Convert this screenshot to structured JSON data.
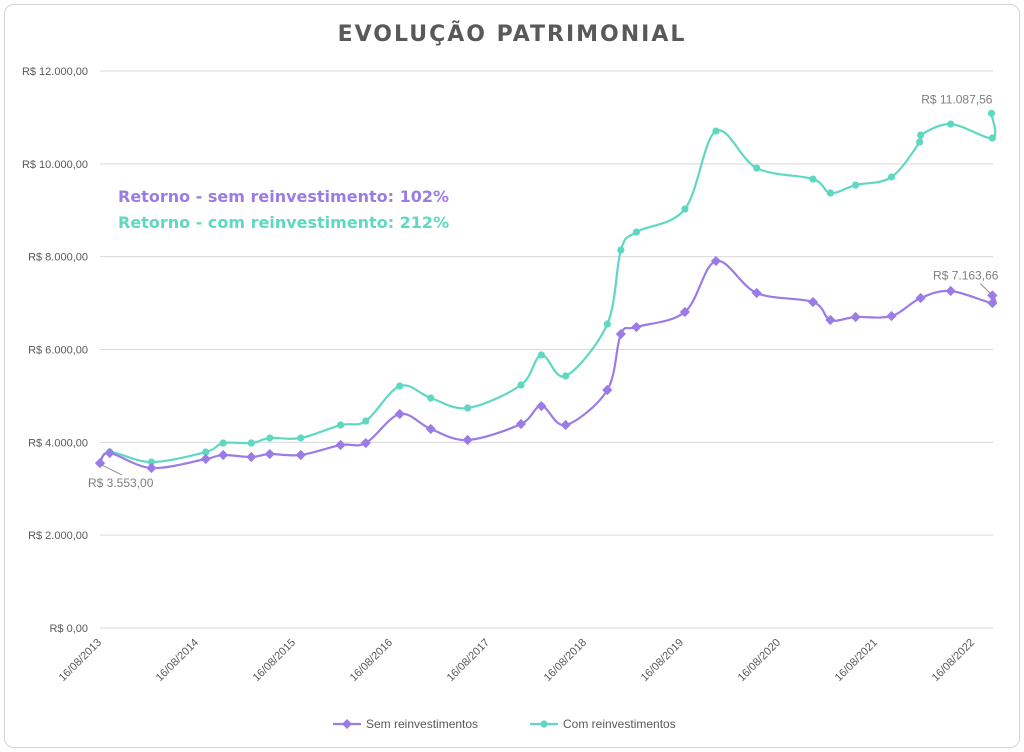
{
  "colors": {
    "sem": "#9b7be6",
    "com": "#5fd8c2",
    "grid": "#d9d9d9",
    "text": "#7f7f7f"
  },
  "chart_data": {
    "type": "line",
    "title": "EVOLUÇÃO PATRIMONIAL",
    "xlabel": "",
    "ylabel": "",
    "x_unit": "years since 16/08/2013",
    "xlim": [
      0,
      9.2
    ],
    "ylim": [
      0,
      12000
    ],
    "yticks": [
      0,
      2000,
      4000,
      6000,
      8000,
      10000,
      12000
    ],
    "ytick_labels": [
      "R$ 0,00",
      "R$ 2.000,00",
      "R$ 4.000,00",
      "R$ 6.000,00",
      "R$ 8.000,00",
      "R$ 10.000,00",
      "R$ 12.000,00"
    ],
    "xticks": [
      0,
      1,
      2,
      3,
      4,
      5,
      6,
      7,
      8,
      9
    ],
    "xtick_labels": [
      "16/08/2013",
      "16/08/2014",
      "16/08/2015",
      "16/08/2016",
      "16/08/2017",
      "16/08/2018",
      "16/08/2019",
      "16/08/2020",
      "16/08/2021",
      "16/08/2022"
    ],
    "grid": true,
    "legend_position": "bottom",
    "series": [
      {
        "name": "Sem reinvestimentos",
        "marker": "diamond",
        "x": [
          0,
          0.1,
          0.53,
          1.09,
          1.27,
          1.56,
          1.75,
          2.07,
          2.48,
          2.74,
          3.09,
          3.41,
          3.79,
          4.34,
          4.55,
          4.8,
          5.23,
          5.37,
          5.53,
          6.03,
          6.35,
          6.77,
          7.35,
          7.53,
          7.79,
          8.16,
          8.46,
          8.77,
          9.2,
          9.2
        ],
        "y": [
          3553,
          3770,
          3447,
          3641,
          3727,
          3684,
          3748,
          3727,
          3942,
          3985,
          4610,
          4287,
          4050,
          4395,
          4782,
          4373,
          5127,
          6333,
          6484,
          6808,
          7906,
          7217,
          7023,
          6635,
          6700,
          6721,
          7109,
          7260,
          7000,
          7163.66
        ]
      },
      {
        "name": "Com reinvestimentos",
        "marker": "circle",
        "x": [
          0,
          0.1,
          0.53,
          1.09,
          1.27,
          1.56,
          1.75,
          2.07,
          2.48,
          2.74,
          3.09,
          3.41,
          3.79,
          4.34,
          4.55,
          4.8,
          5.23,
          5.37,
          5.53,
          6.03,
          6.35,
          6.77,
          7.35,
          7.53,
          7.79,
          8.16,
          8.45,
          8.46,
          8.77,
          9.2,
          9.19
        ],
        "y": [
          3553,
          3791,
          3576,
          3791,
          3985,
          3985,
          4093,
          4093,
          4373,
          4459,
          5213,
          4955,
          4739,
          5235,
          5881,
          5429,
          6549,
          8143,
          8531,
          9026,
          10706,
          9909,
          9672,
          9371,
          9543,
          9716,
          10470,
          10620,
          10857,
          10556,
          11087.56
        ]
      }
    ],
    "annotations": {
      "start": "R$ 3.553,00",
      "end_com": "R$ 11.087,56",
      "end_sem": "R$ 7.163,66",
      "retorno_sem": "Retorno - sem reinvestimento: 102%",
      "retorno_com": "Retorno - com reinvestimento: 212%"
    }
  }
}
